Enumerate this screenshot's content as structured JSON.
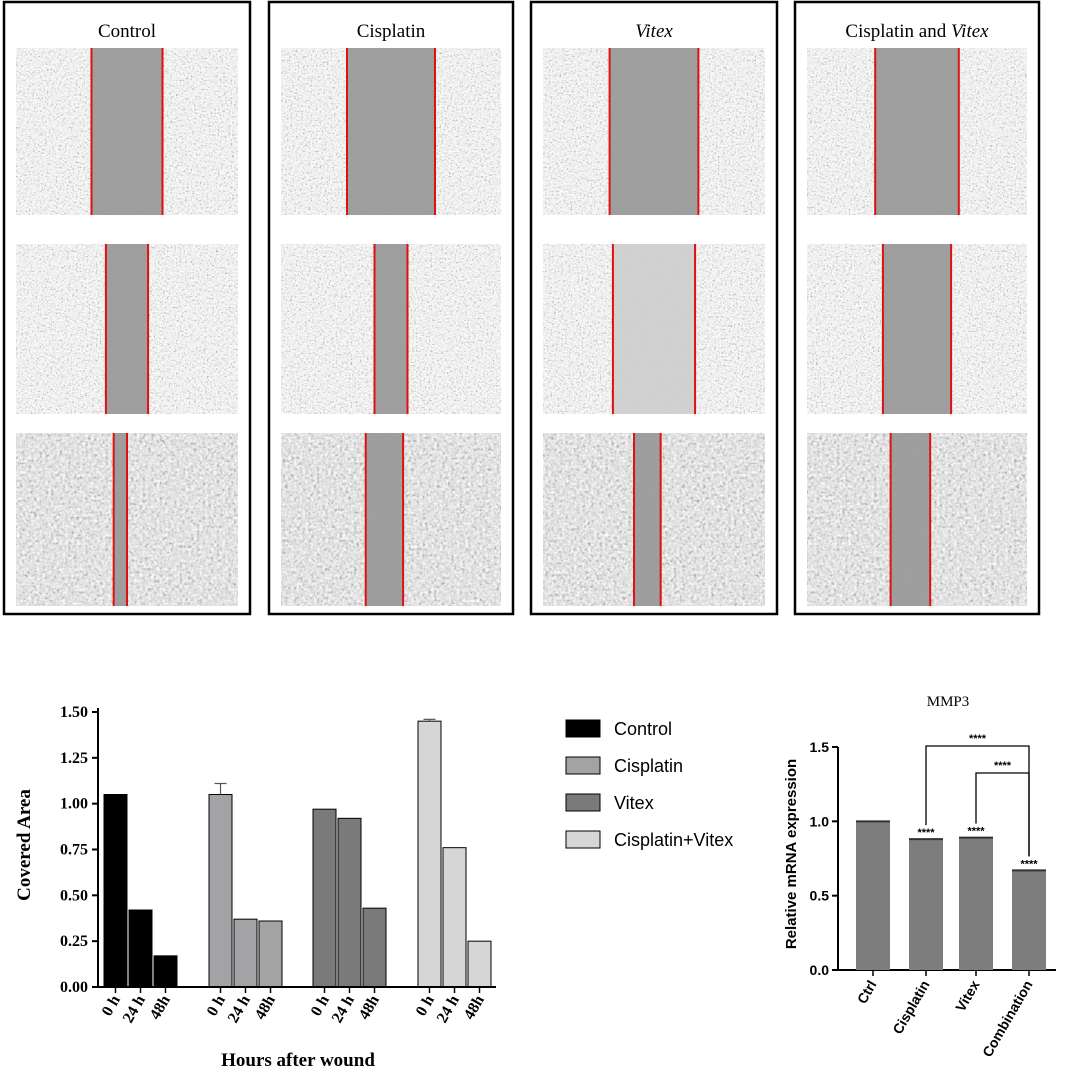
{
  "panels": [
    {
      "title": "Control",
      "italic": "",
      "gaps": [
        0.32,
        0.19,
        0.06
      ]
    },
    {
      "title": "Cisplatin",
      "italic": "",
      "gaps": [
        0.4,
        0.15,
        0.17
      ]
    },
    {
      "title": "",
      "italic": "Vitex",
      "gaps": [
        0.4,
        0.37,
        0.12
      ]
    },
    {
      "title": "Cisplatin and ",
      "italic": "Vitex",
      "gaps": [
        0.38,
        0.31,
        0.18
      ]
    }
  ],
  "chart_data": [
    {
      "type": "bar",
      "title": "",
      "xlabel": "Hours after wound",
      "ylabel": "Covered Area",
      "ylim": [
        0,
        1.5
      ],
      "yticks": [
        "0.00",
        "0.25",
        "0.50",
        "0.75",
        "1.00",
        "1.25",
        "1.50"
      ],
      "categories": [
        "0 h",
        "24 h",
        "48h"
      ],
      "legend_position": "right",
      "series": [
        {
          "name": "Control",
          "values": [
            1.05,
            0.42,
            0.17
          ],
          "errors": [
            0,
            0,
            0
          ],
          "color": "#000000"
        },
        {
          "name": "Cisplatin",
          "values": [
            1.05,
            0.37,
            0.36
          ],
          "errors": [
            0.06,
            0,
            0
          ],
          "color": "#a3a3a6"
        },
        {
          "name": "Vitex",
          "values": [
            0.97,
            0.92,
            0.43
          ],
          "errors": [
            0,
            0,
            0
          ],
          "color": "#7a7a7a"
        },
        {
          "name": "Cisplatin+Vitex",
          "values": [
            1.45,
            0.76,
            0.25
          ],
          "errors": [
            0.01,
            0,
            0
          ],
          "color": "#d6d6d6"
        }
      ]
    },
    {
      "type": "bar",
      "title": "MMP3",
      "xlabel": "",
      "ylabel": "Relative mRNA expression",
      "ylim": [
        0,
        1.5
      ],
      "yticks": [
        "0.0",
        "0.5",
        "1.0",
        "1.5"
      ],
      "categories": [
        "Ctrl",
        "Cisplatin",
        "Vitex",
        "Combination"
      ],
      "values": [
        1.0,
        0.88,
        0.89,
        0.67
      ],
      "significance": [
        "",
        "****",
        "****",
        "****"
      ],
      "brackets": [
        {
          "from": "Cisplatin",
          "to": "Combination",
          "label": "****"
        },
        {
          "from": "Vitex",
          "to": "Combination",
          "label": "****"
        }
      ],
      "color": "#7d7d7d"
    }
  ]
}
